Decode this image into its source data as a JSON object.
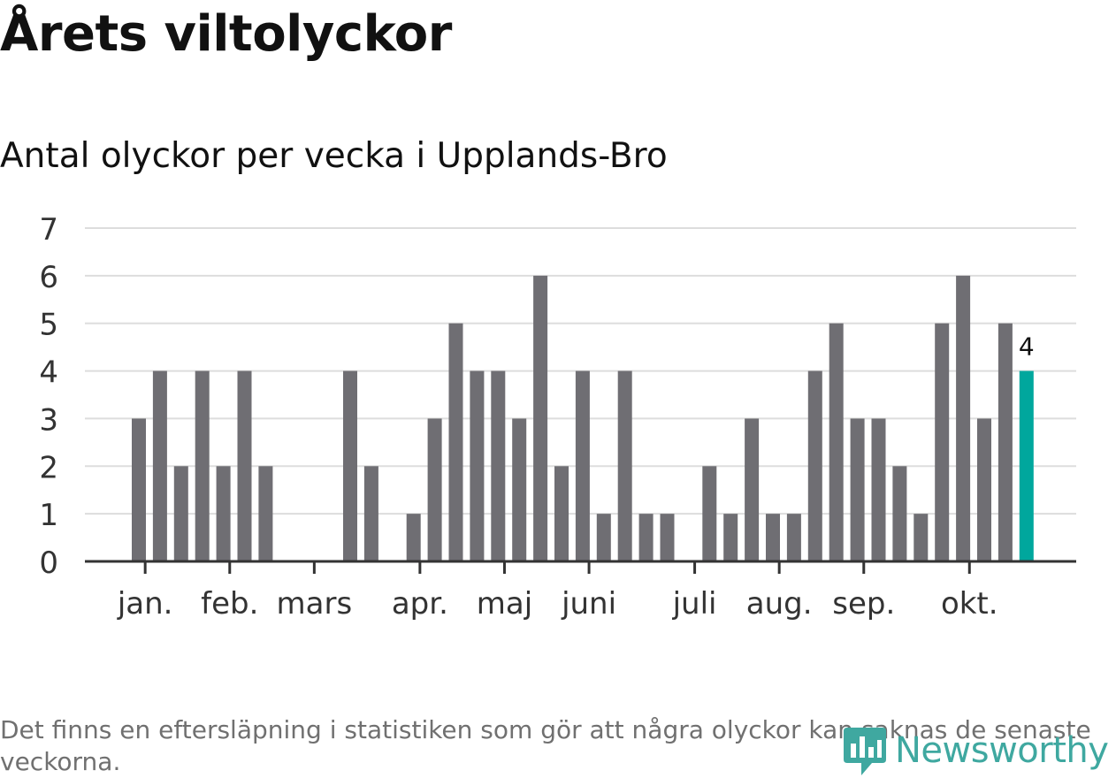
{
  "title": "Årets viltolyckor",
  "subtitle": "Antal olyckor per vecka i Upplands-Bro",
  "note": "Det finns en eftersläpning i statistiken som gör att några olyckor kan saknas de senaste veckorna.",
  "brand": "Newsworthy",
  "colors": {
    "bar": "#6f6e73",
    "highlight": "#00a79d",
    "grid": "#dddddd",
    "axis": "#333333",
    "text": "#333333"
  },
  "chart_data": {
    "type": "bar",
    "title": "Årets viltolyckor",
    "subtitle": "Antal olyckor per vecka i Upplands-Bro",
    "xlabel": "",
    "ylabel": "",
    "ylim": [
      0,
      7
    ],
    "yticks": [
      0,
      1,
      2,
      3,
      4,
      5,
      6,
      7
    ],
    "weeks": [
      1,
      2,
      3,
      4,
      5,
      6,
      7,
      8,
      9,
      10,
      11,
      12,
      13,
      14,
      15,
      16,
      17,
      18,
      19,
      20,
      21,
      22,
      23,
      24,
      25,
      26,
      27,
      28,
      29,
      30,
      31,
      32,
      33,
      34,
      35,
      36,
      37,
      38,
      39,
      40,
      41,
      42,
      43
    ],
    "values": [
      3,
      4,
      2,
      4,
      2,
      4,
      2,
      0,
      0,
      0,
      4,
      2,
      0,
      1,
      3,
      5,
      4,
      4,
      3,
      6,
      2,
      4,
      1,
      4,
      1,
      1,
      0,
      2,
      1,
      3,
      1,
      1,
      4,
      5,
      3,
      3,
      2,
      1,
      5,
      6,
      3,
      5,
      4
    ],
    "highlight_index": 42,
    "highlight_label": "4",
    "month_ticks": [
      {
        "label": "jan.",
        "week": 1.3
      },
      {
        "label": "feb.",
        "week": 5.3
      },
      {
        "label": "mars",
        "week": 9.3
      },
      {
        "label": "apr.",
        "week": 14.3
      },
      {
        "label": "maj",
        "week": 18.3
      },
      {
        "label": "juni",
        "week": 22.3
      },
      {
        "label": "juli",
        "week": 27.3
      },
      {
        "label": "aug.",
        "week": 31.3
      },
      {
        "label": "sep.",
        "week": 35.3
      },
      {
        "label": "okt.",
        "week": 40.3
      }
    ],
    "grid": true
  }
}
